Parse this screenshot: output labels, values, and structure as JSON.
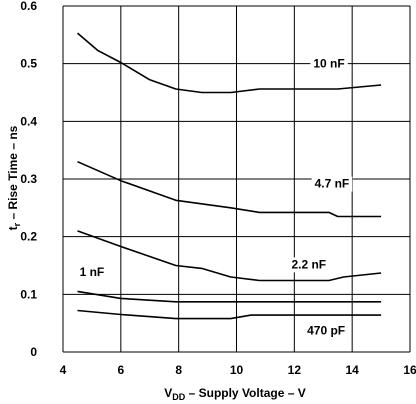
{
  "chart_data": {
    "type": "line",
    "xlabel": {
      "prefix": "V",
      "sub": "DD",
      "suffix": " – Supply Voltage – V"
    },
    "ylabel": {
      "prefix": "t",
      "sub": "r",
      "suffix": " – Rise Time – ns"
    },
    "xlim": [
      4,
      16
    ],
    "ylim": [
      0,
      0.6
    ],
    "x_ticks": [
      4,
      6,
      8,
      10,
      12,
      14,
      16
    ],
    "y_ticks": [
      0,
      0.1,
      0.2,
      0.3,
      0.4,
      0.5,
      0.6
    ],
    "x_tick_labels": [
      "4",
      "6",
      "8",
      "10",
      "12",
      "14",
      "16"
    ],
    "y_tick_labels": [
      "0",
      "0.1",
      "0.2",
      "0.3",
      "0.4",
      "0.5",
      "0.6"
    ],
    "grid": true,
    "series": [
      {
        "name": "10 nF",
        "x": [
          4.5,
          5.2,
          6.0,
          7.0,
          7.9,
          8.8,
          9.8,
          10.8,
          12.0,
          13.5,
          15.0
        ],
        "y": [
          0.553,
          0.523,
          0.502,
          0.472,
          0.456,
          0.45,
          0.45,
          0.456,
          0.456,
          0.456,
          0.463
        ]
      },
      {
        "name": "4.7 nF",
        "x": [
          4.5,
          6.0,
          7.9,
          9.8,
          10.8,
          12.0,
          13.2,
          13.5,
          15.0
        ],
        "y": [
          0.33,
          0.297,
          0.263,
          0.25,
          0.242,
          0.242,
          0.242,
          0.235,
          0.235
        ]
      },
      {
        "name": "2.2 nF",
        "x": [
          4.5,
          6.0,
          7.9,
          8.8,
          9.8,
          10.8,
          12.0,
          13.2,
          13.7,
          15.0
        ],
        "y": [
          0.21,
          0.183,
          0.15,
          0.145,
          0.13,
          0.124,
          0.124,
          0.124,
          0.13,
          0.137
        ]
      },
      {
        "name": "1 nF",
        "x": [
          4.5,
          6.0,
          7.9,
          9.8,
          12.0,
          15.0
        ],
        "y": [
          0.105,
          0.093,
          0.087,
          0.087,
          0.087,
          0.087
        ]
      },
      {
        "name": "470 pF",
        "x": [
          4.5,
          6.0,
          7.9,
          9.8,
          10.5,
          12.0,
          15.0
        ],
        "y": [
          0.072,
          0.065,
          0.058,
          0.058,
          0.064,
          0.064,
          0.064
        ]
      }
    ]
  }
}
